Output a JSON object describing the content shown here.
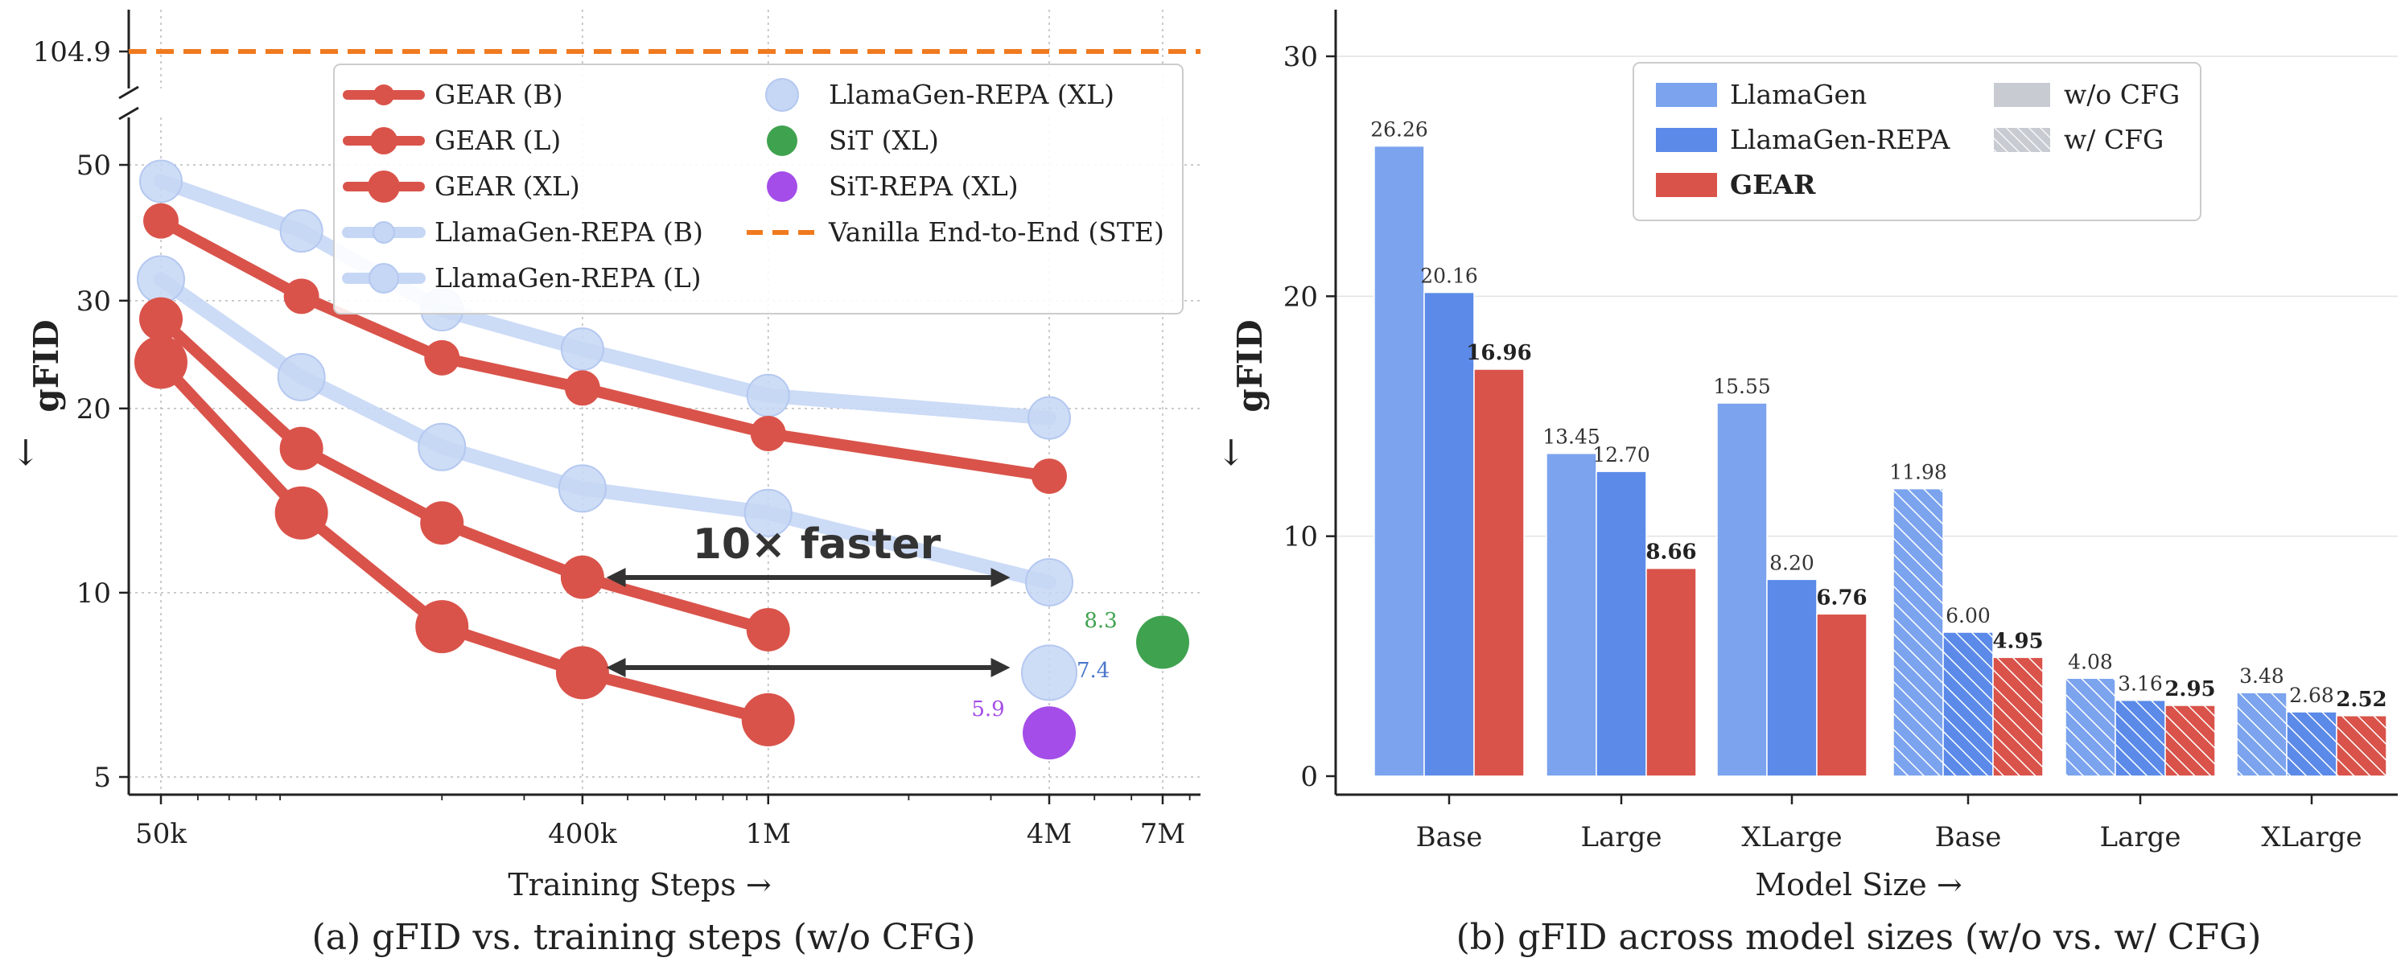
{
  "panel_a": {
    "caption": "(a) gFID vs. training steps (w/o CFG)",
    "xlabel": "Training Steps  →",
    "ylabel": "gFID",
    "yarrow": "↓",
    "annotation": "10× faster",
    "point_labels": [
      "8.3",
      "7.4",
      "5.9"
    ],
    "legend": [
      "GEAR (B)",
      "GEAR (L)",
      "GEAR (XL)",
      "LlamaGen-REPA (B)",
      "LlamaGen-REPA (L)",
      "LlamaGen-REPA (XL)",
      "SiT (XL)",
      "SiT-REPA (XL)",
      "Vanilla End-to-End (STE)"
    ]
  },
  "panel_b": {
    "caption": "(b) gFID across model sizes (w/o vs. w/ CFG)",
    "xlabel": "Model Size  →",
    "ylabel": "gFID",
    "yarrow": "↓",
    "legend": [
      "LlamaGen",
      "LlamaGen-REPA",
      "GEAR",
      "w/o CFG",
      "w/ CFG"
    ]
  },
  "colors": {
    "gear": "#d9534a",
    "llamagen": "#7ba3ee",
    "llamagen_repa": "#5b8ae8",
    "repa_light": "#c6d7f5",
    "sit": "#3fa24f",
    "sit_repa": "#a44de8",
    "vanilla": "#f07a1f",
    "cfg_gray": "#c8ccd2"
  },
  "chart_data": [
    {
      "type": "line",
      "title": "(a) gFID vs. training steps (w/o CFG)",
      "xlabel": "Training Steps",
      "ylabel": "gFID",
      "xscale": "log",
      "yscale": "log",
      "xticks": [
        50000,
        400000,
        1000000,
        4000000,
        7000000
      ],
      "xtick_labels": [
        "50k",
        "400k",
        "1M",
        "4M",
        "7M"
      ],
      "yticks": [
        5,
        10,
        20,
        30,
        50
      ],
      "ytick_labels": [
        "5",
        "10",
        "20",
        "30",
        "50"
      ],
      "ybreak_tick": 104.9,
      "ybreak_tick_label": "104.9",
      "ylim": [
        4.5,
        60
      ],
      "xlim": [
        42000,
        9000000
      ],
      "grid": true,
      "legend_position": "top",
      "series": [
        {
          "name": "LlamaGen-REPA (XL)",
          "color_key": "repa_light",
          "marker_size": 26,
          "x": [
            50000,
            100000,
            200000,
            400000,
            1000000,
            4000000
          ],
          "y": [
            47,
            39,
            29,
            25,
            21,
            19.3
          ]
        },
        {
          "name": "LlamaGen-REPA (L)",
          "color_key": "repa_light",
          "marker_size": 29,
          "x": [
            50000,
            100000,
            200000,
            400000,
            1000000,
            4000000
          ],
          "y": [
            32.5,
            22.5,
            17.3,
            14.8,
            13.5,
            10.4
          ]
        },
        {
          "name": "LlamaGen-REPA (B)",
          "color_key": "repa_light",
          "marker_size": 34,
          "x": [
            4000000
          ],
          "y": [
            7.4
          ]
        },
        {
          "name": "GEAR (B)",
          "color_key": "gear",
          "marker_size": 22,
          "x": [
            50000,
            100000,
            200000,
            400000,
            1000000,
            4000000
          ],
          "y": [
            40.5,
            30.5,
            24.2,
            21.6,
            18.2,
            15.5
          ]
        },
        {
          "name": "GEAR (L)",
          "color_key": "gear",
          "marker_size": 27,
          "x": [
            50000,
            100000,
            200000,
            400000,
            1000000
          ],
          "y": [
            28,
            17.2,
            13,
            10.6,
            8.7
          ]
        },
        {
          "name": "GEAR (XL)",
          "color_key": "gear",
          "marker_size": 33,
          "x": [
            50000,
            100000,
            200000,
            400000,
            1000000
          ],
          "y": [
            23.8,
            13.5,
            8.8,
            7.4,
            6.2
          ]
        },
        {
          "name": "SiT (XL)",
          "color_key": "sit",
          "marker_size": 33,
          "x": [
            7000000
          ],
          "y": [
            8.3
          ]
        },
        {
          "name": "SiT-REPA (XL)",
          "color_key": "sit_repa",
          "marker_size": 33,
          "x": [
            4000000
          ],
          "y": [
            5.9
          ]
        },
        {
          "name": "Vanilla End-to-End (STE)",
          "color_key": "vanilla",
          "y": 104.9
        }
      ],
      "annotations": [
        {
          "text": "10× faster",
          "arrow_from": 450000,
          "arrow_to": 3300000,
          "at_y": 10.5
        },
        {
          "arrow_from": 450000,
          "arrow_to": 3300000,
          "at_y": 7.4
        },
        {
          "text": "8.3",
          "x": 7000000,
          "y": 8.3
        },
        {
          "text": "7.4",
          "x": 4000000,
          "y": 7.4
        },
        {
          "text": "5.9",
          "x": 4000000,
          "y": 5.9
        }
      ]
    },
    {
      "type": "bar",
      "title": "(b) gFID across model sizes (w/o vs. w/ CFG)",
      "xlabel": "Model Size",
      "ylabel": "gFID",
      "categories": [
        "Base",
        "Large",
        "XLarge",
        "Base",
        "Large",
        "XLarge"
      ],
      "group_cfg": [
        "w/o CFG",
        "w/o CFG",
        "w/o CFG",
        "w/ CFG",
        "w/ CFG",
        "w/ CFG"
      ],
      "ylim": [
        0,
        32
      ],
      "yticks": [
        0,
        10,
        20,
        30
      ],
      "grid": true,
      "legend_position": "top",
      "series": [
        {
          "name": "LlamaGen",
          "color_key": "llamagen",
          "values": [
            26.26,
            13.45,
            15.55,
            11.98,
            4.08,
            3.48
          ],
          "labels": [
            "26.26",
            "13.45",
            "15.55",
            "11.98",
            "4.08",
            "3.48"
          ]
        },
        {
          "name": "LlamaGen-REPA",
          "color_key": "llamagen_repa",
          "values": [
            20.16,
            12.7,
            8.2,
            6.0,
            3.16,
            2.68
          ],
          "labels": [
            "20.16",
            "12.70",
            "8.20",
            "6.00",
            "3.16",
            "2.68"
          ]
        },
        {
          "name": "GEAR",
          "color_key": "gear",
          "values": [
            16.96,
            8.66,
            6.76,
            4.95,
            2.95,
            2.52
          ],
          "labels": [
            "16.96",
            "8.66",
            "6.76",
            "4.95",
            "2.95",
            "2.52"
          ]
        }
      ]
    }
  ]
}
